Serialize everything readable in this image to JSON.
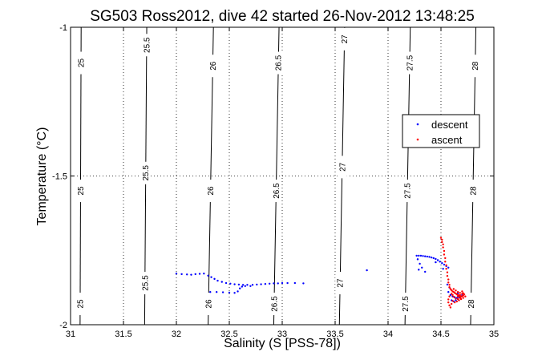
{
  "chart_data": {
    "type": "scatter",
    "title": "SG503 Ross2012, dive 42 started 26-Nov-2012 13:48:25",
    "xlabel": "Salinity (S [PSS-78])",
    "ylabel": "Temperature (°C)",
    "xlim": [
      31,
      35
    ],
    "ylim": [
      -2,
      -1
    ],
    "xticks": [
      "31",
      "31.5",
      "32",
      "32.5",
      "33",
      "33.5",
      "34",
      "34.5",
      "35"
    ],
    "yticks": [
      "-2",
      "-1.5",
      "-1"
    ],
    "grid": true,
    "legend_position": "right",
    "density_contours": [
      {
        "label": "25",
        "x_top": 31.1,
        "x_bottom": 31.09,
        "label_positions": [
          -1.12,
          -1.55,
          -1.93
        ]
      },
      {
        "label": "25.5",
        "x_top": 31.72,
        "x_bottom": 31.7,
        "label_positions": [
          -1.06,
          -1.49,
          -1.86
        ]
      },
      {
        "label": "26",
        "x_top": 32.35,
        "x_bottom": 32.3,
        "label_positions": [
          -1.13,
          -1.55,
          -1.93
        ]
      },
      {
        "label": "26.5",
        "x_top": 32.97,
        "x_bottom": 32.92,
        "label_positions": [
          -1.12,
          -1.55,
          -1.93
        ]
      },
      {
        "label": "27",
        "x_top": 33.59,
        "x_bottom": 33.54,
        "label_positions": [
          -1.04,
          -1.47,
          -1.86
        ]
      },
      {
        "label": "27.5",
        "x_top": 34.21,
        "x_bottom": 34.16,
        "label_positions": [
          -1.12,
          -1.55,
          -1.93
        ]
      },
      {
        "label": "28",
        "x_top": 34.83,
        "x_bottom": 34.78,
        "label_positions": [
          -1.13,
          -1.55,
          -1.93
        ]
      }
    ],
    "series": [
      {
        "name": "descent",
        "color": "#0000ff",
        "points": [
          [
            32.0,
            -1.828
          ],
          [
            32.05,
            -1.83
          ],
          [
            32.1,
            -1.831
          ],
          [
            32.14,
            -1.832
          ],
          [
            32.18,
            -1.83
          ],
          [
            32.22,
            -1.829
          ],
          [
            32.26,
            -1.828
          ],
          [
            32.3,
            -1.835
          ],
          [
            32.33,
            -1.84
          ],
          [
            32.36,
            -1.846
          ],
          [
            32.39,
            -1.852
          ],
          [
            32.43,
            -1.856
          ],
          [
            32.47,
            -1.86
          ],
          [
            32.51,
            -1.862
          ],
          [
            32.55,
            -1.864
          ],
          [
            32.59,
            -1.865
          ],
          [
            32.63,
            -1.866
          ],
          [
            32.67,
            -1.866
          ],
          [
            32.72,
            -1.866
          ],
          [
            32.76,
            -1.865
          ],
          [
            32.8,
            -1.864
          ],
          [
            32.84,
            -1.863
          ],
          [
            32.88,
            -1.862
          ],
          [
            32.92,
            -1.861
          ],
          [
            32.96,
            -1.861
          ],
          [
            33.0,
            -1.86
          ],
          [
            33.05,
            -1.86
          ],
          [
            33.12,
            -1.86
          ],
          [
            33.2,
            -1.861
          ],
          [
            32.32,
            -1.89
          ],
          [
            32.38,
            -1.89
          ],
          [
            32.44,
            -1.891
          ],
          [
            32.5,
            -1.892
          ],
          [
            32.55,
            -1.893
          ],
          [
            32.58,
            -1.888
          ],
          [
            32.6,
            -1.878
          ],
          [
            32.62,
            -1.872
          ],
          [
            32.65,
            -1.87
          ],
          [
            32.7,
            -1.87
          ],
          [
            33.8,
            -1.817
          ],
          [
            34.27,
            -1.768
          ],
          [
            34.29,
            -1.768
          ],
          [
            34.31,
            -1.768
          ],
          [
            34.33,
            -1.769
          ],
          [
            34.35,
            -1.77
          ],
          [
            34.37,
            -1.771
          ],
          [
            34.39,
            -1.772
          ],
          [
            34.41,
            -1.774
          ],
          [
            34.43,
            -1.776
          ],
          [
            34.45,
            -1.779
          ],
          [
            34.47,
            -1.783
          ],
          [
            34.49,
            -1.788
          ],
          [
            34.51,
            -1.793
          ],
          [
            34.53,
            -1.798
          ],
          [
            34.55,
            -1.803
          ],
          [
            34.57,
            -1.808
          ],
          [
            34.28,
            -1.78
          ],
          [
            34.3,
            -1.795
          ],
          [
            34.32,
            -1.808
          ],
          [
            34.29,
            -1.815
          ],
          [
            34.35,
            -1.822
          ],
          [
            34.45,
            -1.79
          ],
          [
            34.52,
            -1.812
          ],
          [
            34.57,
            -1.89
          ],
          [
            34.59,
            -1.9
          ],
          [
            34.61,
            -1.905
          ],
          [
            34.63,
            -1.908
          ],
          [
            34.65,
            -1.91
          ],
          [
            34.67,
            -1.908
          ],
          [
            34.69,
            -1.905
          ],
          [
            34.6,
            -1.918
          ],
          [
            34.62,
            -1.922
          ],
          [
            34.64,
            -1.918
          ],
          [
            34.58,
            -1.875
          ],
          [
            34.56,
            -1.865
          ],
          [
            34.66,
            -1.895
          ],
          [
            34.7,
            -1.9
          ]
        ]
      },
      {
        "name": "ascent",
        "color": "#ff0000",
        "points": [
          [
            34.5,
            -1.708
          ],
          [
            34.51,
            -1.714
          ],
          [
            34.51,
            -1.722
          ],
          [
            34.52,
            -1.73
          ],
          [
            34.52,
            -1.74
          ],
          [
            34.53,
            -1.752
          ],
          [
            34.53,
            -1.764
          ],
          [
            34.54,
            -1.776
          ],
          [
            34.54,
            -1.788
          ],
          [
            34.55,
            -1.8
          ],
          [
            34.55,
            -1.812
          ],
          [
            34.56,
            -1.824
          ],
          [
            34.56,
            -1.836
          ],
          [
            34.57,
            -1.848
          ],
          [
            34.57,
            -1.858
          ],
          [
            34.58,
            -1.866
          ],
          [
            34.58,
            -1.874
          ],
          [
            34.59,
            -1.88
          ],
          [
            34.6,
            -1.884
          ],
          [
            34.61,
            -1.888
          ],
          [
            34.62,
            -1.89
          ],
          [
            34.63,
            -1.893
          ],
          [
            34.64,
            -1.895
          ],
          [
            34.65,
            -1.898
          ],
          [
            34.66,
            -1.9
          ],
          [
            34.67,
            -1.902
          ],
          [
            34.68,
            -1.904
          ],
          [
            34.69,
            -1.906
          ],
          [
            34.7,
            -1.904
          ],
          [
            34.71,
            -1.902
          ],
          [
            34.72,
            -1.898
          ],
          [
            34.71,
            -1.894
          ],
          [
            34.7,
            -1.896
          ],
          [
            34.68,
            -1.91
          ],
          [
            34.66,
            -1.914
          ],
          [
            34.64,
            -1.912
          ],
          [
            34.62,
            -1.906
          ],
          [
            34.61,
            -1.9
          ],
          [
            34.6,
            -1.896
          ],
          [
            34.58,
            -1.905
          ],
          [
            34.57,
            -1.915
          ],
          [
            34.57,
            -1.925
          ],
          [
            34.58,
            -1.935
          ],
          [
            34.59,
            -1.942
          ],
          [
            34.6,
            -1.93
          ],
          [
            34.61,
            -1.92
          ],
          [
            34.63,
            -1.925
          ],
          [
            34.65,
            -1.922
          ],
          [
            34.67,
            -1.918
          ],
          [
            34.69,
            -1.914
          ],
          [
            34.71,
            -1.91
          ],
          [
            34.73,
            -1.905
          ],
          [
            34.62,
            -1.88
          ],
          [
            34.64,
            -1.885
          ],
          [
            34.66,
            -1.89
          ],
          [
            34.68,
            -1.893
          ],
          [
            34.7,
            -1.888
          ],
          [
            34.66,
            -1.905
          ],
          [
            34.68,
            -1.9
          ]
        ]
      }
    ]
  }
}
